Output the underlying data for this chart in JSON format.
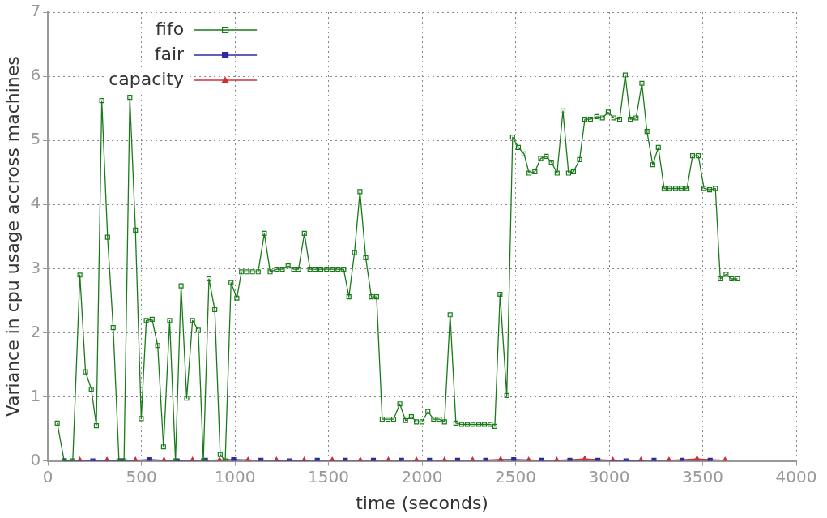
{
  "chart_data": {
    "type": "line",
    "xlabel": "time (seconds)",
    "ylabel": "Variance in cpu usage accross machines",
    "xlim": [
      0,
      4000
    ],
    "xticks": [
      0,
      500,
      1000,
      1500,
      2000,
      2500,
      3000,
      3500,
      4000
    ],
    "ylim": [
      0,
      7
    ],
    "yticks": [
      0,
      1,
      2,
      3,
      4,
      5,
      6,
      7
    ],
    "grid": true,
    "legend": "top left",
    "line_style": "solid",
    "series": [
      {
        "name": "fifo",
        "color": "#1a7a1a",
        "marker": "square",
        "x": [
          50,
          87,
          133,
          171,
          201,
          232,
          259,
          288,
          319,
          349,
          380,
          407,
          438,
          468,
          499,
          526,
          557,
          587,
          618,
          651,
          682,
          712,
          742,
          773,
          804,
          831,
          861,
          892,
          921,
          948,
          979,
          1010,
          1035,
          1063,
          1093,
          1124,
          1157,
          1188,
          1223,
          1253,
          1284,
          1314,
          1340,
          1371,
          1401,
          1428,
          1459,
          1490,
          1520,
          1551,
          1581,
          1609,
          1639,
          1668,
          1699,
          1729,
          1757,
          1787,
          1818,
          1848,
          1881,
          1912,
          1943,
          1970,
          2000,
          2031,
          2062,
          2092,
          2120,
          2150,
          2181,
          2211,
          2242,
          2272,
          2303,
          2333,
          2364,
          2389,
          2417,
          2453,
          2484,
          2515,
          2545,
          2572,
          2603,
          2634,
          2664,
          2691,
          2722,
          2753,
          2783,
          2809,
          2842,
          2870,
          2900,
          2934,
          2964,
          2995,
          3025,
          3056,
          3086,
          3113,
          3144,
          3175,
          3202,
          3233,
          3263,
          3294,
          3324,
          3355,
          3385,
          3416,
          3446,
          3477,
          3507,
          3537,
          3568,
          3594,
          3625,
          3655,
          3686
        ],
        "values": [
          0.59,
          0,
          0,
          2.9,
          1.39,
          1.12,
          0.55,
          5.62,
          3.49,
          2.08,
          0,
          0,
          5.67,
          3.6,
          0.66,
          2.19,
          2.21,
          1.8,
          0.22,
          2.19,
          0,
          2.73,
          0.98,
          2.19,
          2.04,
          0,
          2.84,
          2.36,
          0.1,
          0,
          2.78,
          2.54,
          2.95,
          2.95,
          2.95,
          2.95,
          3.55,
          2.95,
          2.99,
          2.99,
          3.04,
          2.99,
          2.99,
          3.55,
          2.99,
          2.99,
          2.99,
          2.99,
          2.99,
          2.99,
          2.99,
          2.56,
          3.25,
          4.2,
          3.17,
          2.56,
          2.56,
          0.65,
          0.65,
          0.65,
          0.89,
          0.63,
          0.69,
          0.61,
          0.61,
          0.77,
          0.65,
          0.65,
          0.61,
          2.28,
          0.59,
          0.57,
          0.57,
          0.57,
          0.57,
          0.57,
          0.57,
          0.54,
          2.6,
          1.02,
          5.05,
          4.89,
          4.79,
          4.49,
          4.51,
          4.72,
          4.75,
          4.66,
          4.49,
          5.46,
          4.49,
          4.51,
          4.7,
          5.33,
          5.33,
          5.37,
          5.35,
          5.44,
          5.35,
          5.33,
          6.02,
          5.33,
          5.35,
          5.89,
          5.14,
          4.62,
          4.89,
          4.25,
          4.25,
          4.25,
          4.25,
          4.25,
          4.76,
          4.76,
          4.25,
          4.23,
          4.25,
          2.84,
          2.91,
          2.84,
          2.84
        ]
      },
      {
        "name": "fair",
        "color": "#2b2b9e",
        "marker": "square",
        "x": [
          87,
          240,
          393,
          544,
          691,
          842,
          993,
          1139,
          1290,
          1440,
          1590,
          1740,
          1890,
          2040,
          2190,
          2340,
          2490,
          2640,
          2790,
          2940,
          3090,
          3240,
          3390,
          3540
        ],
        "values": [
          0,
          0,
          0,
          0.02,
          0,
          0.01,
          0.02,
          0.01,
          0,
          0.01,
          0.01,
          0.01,
          0.01,
          0.01,
          0.01,
          0.01,
          0.02,
          0.01,
          0.01,
          0.01,
          0,
          0.01,
          0.01,
          0.01
        ]
      },
      {
        "name": "capacity",
        "color": "#d03030",
        "marker": "triangle",
        "x": [
          171,
          316,
          468,
          621,
          773,
          918,
          1070,
          1222,
          1370,
          1520,
          1670,
          1820,
          1970,
          2120,
          2270,
          2420,
          2570,
          2720,
          2870,
          3020,
          3170,
          3320,
          3470,
          3620
        ],
        "values": [
          0.01,
          0.01,
          0.01,
          0.01,
          0.01,
          0.01,
          0.01,
          0.01,
          0.01,
          0.01,
          0.01,
          0.01,
          0.01,
          0.01,
          0.01,
          0.02,
          0.01,
          0.01,
          0.03,
          0.01,
          0.01,
          0.01,
          0.03,
          0.01
        ]
      }
    ]
  }
}
